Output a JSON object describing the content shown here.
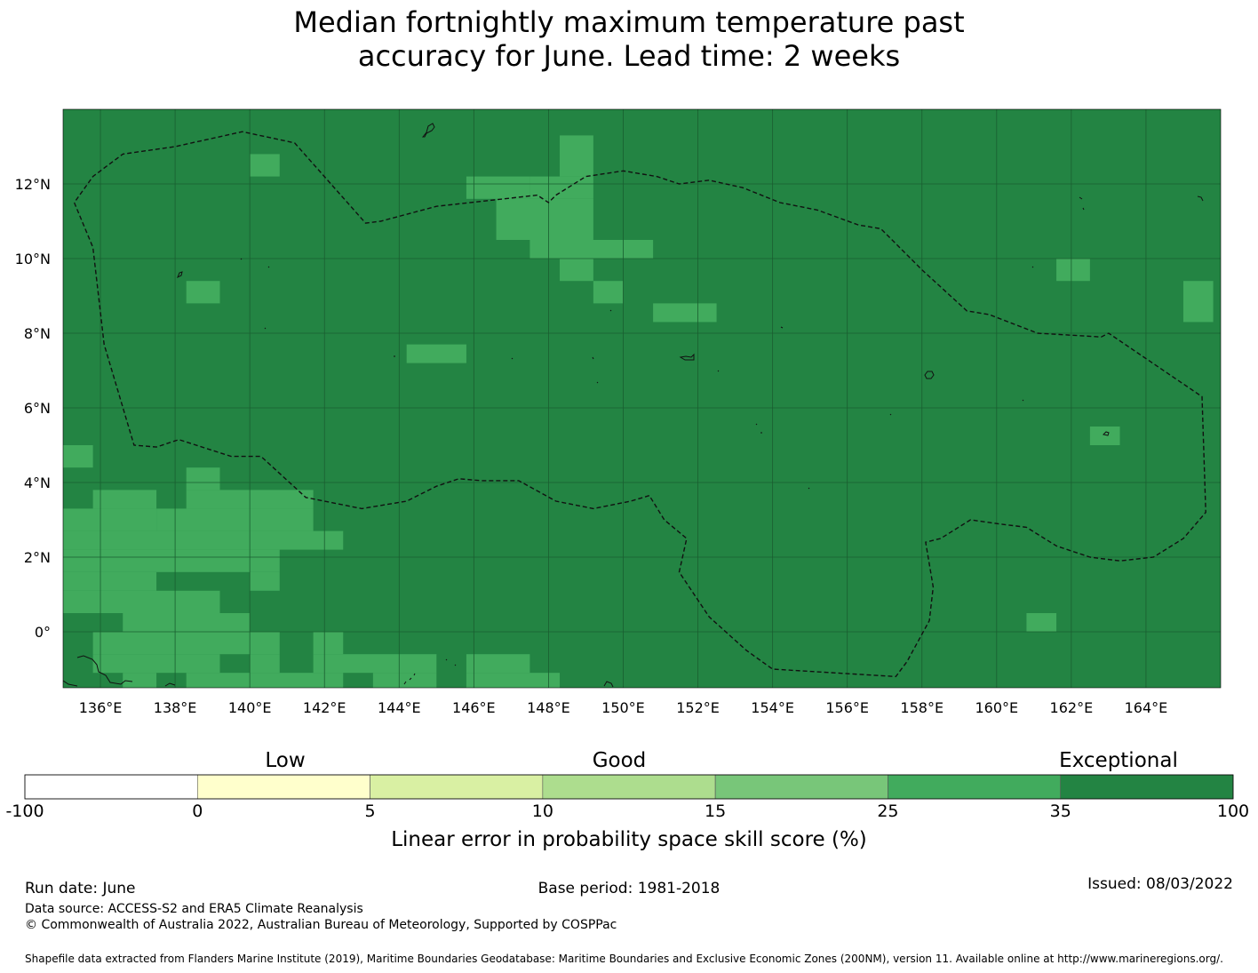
{
  "title": {
    "line1": "Median fortnightly maximum temperature past",
    "line2": "accuracy for June. Lead time: 2 weeks"
  },
  "map": {
    "extent": {
      "lon_min": 135.0,
      "lon_max": 166.0,
      "lat_min": -1.5,
      "lat_max": 14.0
    },
    "background_color": "#238443",
    "highlight_color": "#41ab5d",
    "grid_lines": true,
    "lon_ticks": [
      136,
      138,
      140,
      142,
      144,
      146,
      148,
      150,
      152,
      154,
      156,
      158,
      160,
      162,
      164
    ],
    "lon_labels": [
      "136°E",
      "138°E",
      "140°E",
      "142°E",
      "144°E",
      "146°E",
      "148°E",
      "150°E",
      "152°E",
      "154°E",
      "156°E",
      "158°E",
      "160°E",
      "162°E",
      "164°E"
    ],
    "lat_ticks": [
      12,
      10,
      8,
      6,
      4,
      2,
      0
    ],
    "lat_labels": [
      "12°N",
      "10°N",
      "8°N",
      "6°N",
      "4°N",
      "2°N",
      "0°"
    ],
    "cell_size_deg": 0.833,
    "highlight_cells": [
      [
        140.0,
        12.2,
        140.8,
        12.8
      ],
      [
        148.3,
        12.2,
        149.2,
        13.3
      ],
      [
        147.5,
        11.6,
        149.2,
        12.2
      ],
      [
        145.8,
        11.6,
        147.5,
        12.2
      ],
      [
        146.6,
        10.5,
        149.2,
        11.6
      ],
      [
        147.5,
        10.0,
        150.8,
        10.5
      ],
      [
        148.3,
        9.4,
        149.2,
        10.0
      ],
      [
        149.2,
        8.8,
        150.0,
        9.4
      ],
      [
        138.3,
        8.8,
        139.2,
        9.4
      ],
      [
        150.8,
        8.3,
        152.5,
        8.8
      ],
      [
        144.2,
        7.2,
        145.8,
        7.7
      ],
      [
        161.6,
        9.4,
        162.5,
        10.0
      ],
      [
        165.0,
        8.3,
        165.8,
        9.4
      ],
      [
        162.5,
        5.0,
        163.3,
        5.5
      ],
      [
        135.0,
        4.4,
        135.8,
        5.0
      ],
      [
        138.3,
        3.8,
        139.2,
        4.4
      ],
      [
        135.8,
        3.3,
        137.5,
        3.8
      ],
      [
        138.3,
        3.3,
        141.7,
        3.8
      ],
      [
        135.0,
        2.7,
        137.5,
        3.3
      ],
      [
        137.5,
        2.7,
        141.7,
        3.3
      ],
      [
        135.0,
        2.2,
        142.5,
        2.7
      ],
      [
        135.0,
        1.6,
        140.8,
        2.2
      ],
      [
        135.0,
        1.1,
        137.5,
        1.6
      ],
      [
        140.0,
        1.1,
        140.8,
        1.6
      ],
      [
        135.0,
        0.5,
        139.2,
        1.1
      ],
      [
        136.6,
        0.0,
        140.0,
        0.5
      ],
      [
        135.8,
        -0.6,
        140.8,
        0.0
      ],
      [
        141.7,
        -0.6,
        142.5,
        0.0
      ],
      [
        135.8,
        -1.1,
        139.2,
        -0.6
      ],
      [
        140.0,
        -1.1,
        140.8,
        -0.6
      ],
      [
        141.7,
        -1.1,
        145.0,
        -0.6
      ],
      [
        145.8,
        -1.1,
        147.5,
        -0.6
      ],
      [
        136.6,
        -1.5,
        137.5,
        -1.1
      ],
      [
        138.3,
        -1.5,
        142.5,
        -1.1
      ],
      [
        143.3,
        -1.5,
        145.0,
        -1.1
      ],
      [
        145.8,
        -1.5,
        148.3,
        -1.1
      ],
      [
        160.8,
        0.0,
        161.6,
        0.5
      ]
    ],
    "eez_boundary": [
      [
        135.3,
        11.5
      ],
      [
        135.8,
        10.3
      ],
      [
        136.1,
        7.7
      ],
      [
        136.9,
        5.0
      ],
      [
        137.5,
        4.95
      ],
      [
        138.1,
        5.15
      ],
      [
        139.5,
        4.7
      ],
      [
        140.3,
        4.7
      ],
      [
        141.5,
        3.6
      ],
      [
        143.0,
        3.3
      ],
      [
        144.2,
        3.5
      ],
      [
        145.0,
        3.9
      ],
      [
        145.6,
        4.1
      ],
      [
        146.2,
        4.05
      ],
      [
        147.2,
        4.05
      ],
      [
        148.2,
        3.5
      ],
      [
        149.2,
        3.3
      ],
      [
        150.2,
        3.5
      ],
      [
        150.7,
        3.65
      ],
      [
        151.1,
        3.0
      ],
      [
        151.7,
        2.5
      ],
      [
        151.5,
        1.6
      ],
      [
        152.3,
        0.4
      ],
      [
        153.3,
        -0.5
      ],
      [
        154.0,
        -1.0
      ],
      [
        157.3,
        -1.2
      ],
      [
        157.6,
        -0.8
      ],
      [
        158.2,
        0.3
      ],
      [
        158.3,
        1.2
      ],
      [
        158.1,
        2.4
      ],
      [
        158.5,
        2.5
      ],
      [
        159.3,
        3.0
      ],
      [
        160.0,
        2.9
      ],
      [
        160.8,
        2.8
      ],
      [
        161.6,
        2.3
      ],
      [
        162.5,
        2.0
      ],
      [
        163.3,
        1.9
      ],
      [
        164.2,
        2.0
      ],
      [
        165.0,
        2.5
      ],
      [
        165.6,
        3.2
      ],
      [
        165.5,
        6.3
      ],
      [
        163.0,
        8.0
      ],
      [
        162.8,
        7.9
      ],
      [
        161.1,
        8.0
      ],
      [
        159.8,
        8.5
      ],
      [
        159.2,
        8.6
      ],
      [
        158.0,
        9.7
      ],
      [
        157.3,
        10.4
      ],
      [
        156.9,
        10.8
      ],
      [
        156.3,
        10.9
      ],
      [
        155.2,
        11.3
      ],
      [
        154.2,
        11.5
      ],
      [
        153.2,
        11.9
      ],
      [
        152.3,
        12.1
      ],
      [
        151.5,
        12.0
      ],
      [
        150.9,
        12.2
      ],
      [
        150.0,
        12.35
      ],
      [
        149.0,
        12.2
      ],
      [
        148.2,
        11.7
      ],
      [
        148.0,
        11.5
      ],
      [
        147.7,
        11.7
      ],
      [
        145.0,
        11.4
      ],
      [
        143.5,
        11.0
      ],
      [
        143.1,
        10.95
      ],
      [
        141.2,
        13.1
      ],
      [
        139.8,
        13.4
      ],
      [
        138.0,
        13.0
      ],
      [
        136.6,
        12.8
      ],
      [
        135.8,
        12.2
      ],
      [
        135.3,
        11.5
      ]
    ]
  },
  "colorbar": {
    "category_labels": [
      "Low",
      "Good",
      "Exceptional"
    ],
    "bins": [
      {
        "min": -100,
        "max": 0,
        "color": "#ffffff"
      },
      {
        "min": 0,
        "max": 5,
        "color": "#ffffcc"
      },
      {
        "min": 5,
        "max": 10,
        "color": "#d9f0a3"
      },
      {
        "min": 10,
        "max": 15,
        "color": "#addd8e"
      },
      {
        "min": 15,
        "max": 25,
        "color": "#78c679"
      },
      {
        "min": 25,
        "max": 35,
        "color": "#41ab5d"
      },
      {
        "min": 35,
        "max": 100,
        "color": "#238443"
      }
    ],
    "tick_labels": [
      "-100",
      "0",
      "5",
      "10",
      "15",
      "25",
      "35",
      "100"
    ],
    "xlabel": "Linear error in probability space skill score (%)"
  },
  "footer": {
    "run_date": "Run date: June",
    "base_period": "Base period: 1981-2018",
    "issued": "Issued: 08/03/2022",
    "data_source": "Data source: ACCESS-S2 and ERA5 Climate Reanalysis",
    "copyright": "© Commonwealth of Australia 2022, Australian Bureau of Meteorology, Supported by COSPPac",
    "shapefile_note": "Shapefile data extracted from Flanders Marine Institute (2019), Maritime Boundaries Geodatabase: Maritime Boundaries and Exclusive Economic Zones (200NM), version 11. Available online at http://www.marineregions.org/."
  }
}
